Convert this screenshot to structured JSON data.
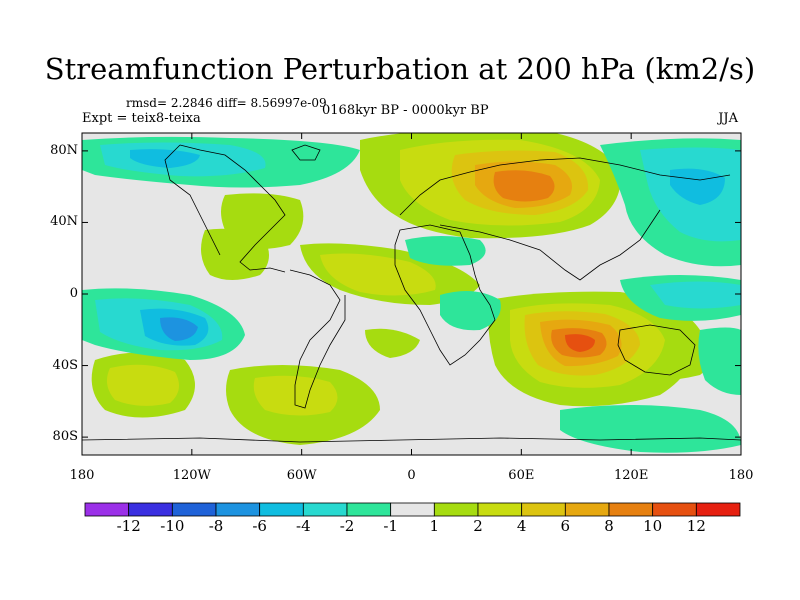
{
  "title": "Streamfunction Perturbation at 200 hPa (km2/s)",
  "stats": {
    "rmsd_line": "rmsd= 2.2846 diff= 8.56997e-09",
    "experiment": "Expt = teix8-teixa",
    "period": "0168kyr BP - 0000kyr BP",
    "season": "JJA"
  },
  "axes": {
    "y_ticks": [
      {
        "value": 80,
        "label": "80N"
      },
      {
        "value": 40,
        "label": "40N"
      },
      {
        "value": 0,
        "label": "0"
      },
      {
        "value": -40,
        "label": "40S"
      },
      {
        "value": -80,
        "label": "80S"
      }
    ],
    "x_ticks": [
      {
        "value": -180,
        "label": "180"
      },
      {
        "value": -120,
        "label": "120W"
      },
      {
        "value": -60,
        "label": "60W"
      },
      {
        "value": 0,
        "label": "0"
      },
      {
        "value": 60,
        "label": "60E"
      },
      {
        "value": 120,
        "label": "120E"
      },
      {
        "value": 180,
        "label": "180"
      }
    ]
  },
  "colorbar": {
    "colors": [
      "#9b30e8",
      "#3a2fe0",
      "#1f62d8",
      "#1d93e0",
      "#10bde0",
      "#28d9d0",
      "#2ee59a",
      "#e6e6e6",
      "#a6dc10",
      "#c8dc10",
      "#dcc410",
      "#e6a810",
      "#e68010",
      "#e65010",
      "#e62010"
    ],
    "labels": [
      "-12",
      "-10",
      "-8",
      "-6",
      "-4",
      "-2",
      "-1",
      "1",
      "2",
      "4",
      "6",
      "8",
      "10",
      "12"
    ]
  },
  "map_data": {
    "projection": "cylindrical equidistant",
    "lon_range": [
      -180,
      180
    ],
    "lat_range": [
      -90,
      90
    ],
    "background_level": "-1 to 1",
    "regions": [
      {
        "name": "north-atlantic-europe-high",
        "lon": 52,
        "lat": 55,
        "peak": 8
      },
      {
        "name": "indian-ocean-high",
        "lon": 80,
        "lat": -25,
        "peak": 10
      },
      {
        "name": "south-pacific-high",
        "lon": -145,
        "lat": -45,
        "peak": 4
      },
      {
        "name": "south-atlantic-high",
        "lon": -40,
        "lat": -60,
        "peak": 2
      },
      {
        "name": "tropical-atlantic-high",
        "lon": -40,
        "lat": 10,
        "peak": 2
      },
      {
        "name": "australia-high",
        "lon": 140,
        "lat": -30,
        "peak": 2
      },
      {
        "name": "north-america-high",
        "lon": -80,
        "lat": 40,
        "peak": 2
      },
      {
        "name": "south-pacific-low",
        "lon": -125,
        "lat": -25,
        "peak": -8
      },
      {
        "name": "arctic-canada-low",
        "lon": -120,
        "lat": 70,
        "peak": -4
      },
      {
        "name": "siberia-pacific-low",
        "lon": 155,
        "lat": 55,
        "peak": -4
      },
      {
        "name": "west-pacific-low",
        "lon": 160,
        "lat": 10,
        "peak": -4
      },
      {
        "name": "east-africa-low",
        "lon": 40,
        "lat": -5,
        "peak": -2
      },
      {
        "name": "southern-ocean-low",
        "lon": 150,
        "lat": -65,
        "peak": -4
      }
    ]
  }
}
